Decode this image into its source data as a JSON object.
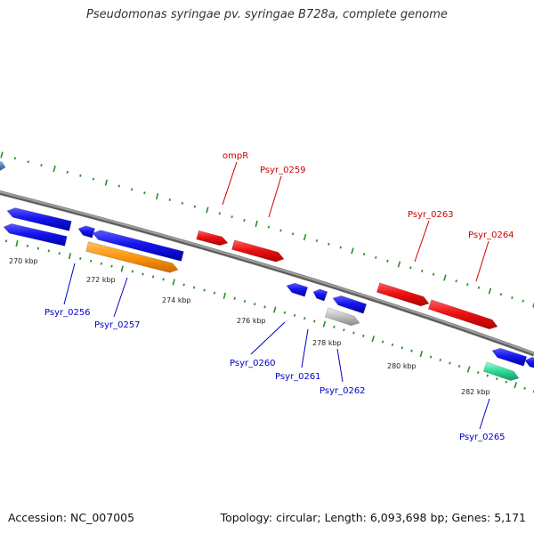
{
  "title": "Pseudomonas syringae pv. syringae B728a, complete genome",
  "footer": {
    "accession": "Accession: NC_007005",
    "summary": "Topology: circular; Length: 6,093,698 bp; Genes: 5,171"
  },
  "colors": {
    "backbone": "#808080",
    "ruler": "#2e8b2e",
    "forward_label": "#cc0000",
    "reverse_label": "#0000cc"
  },
  "ruler_labels": [
    "270 kbp",
    "272 kbp",
    "274 kbp",
    "276 kbp",
    "278 kbp",
    "280 kbp",
    "282 kbp"
  ],
  "gene_labels": [
    {
      "id": "ompR",
      "text": "ompR",
      "strand": "forward"
    },
    {
      "id": "p0259",
      "text": "Psyr_0259",
      "strand": "forward"
    },
    {
      "id": "p0263",
      "text": "Psyr_0263",
      "strand": "forward"
    },
    {
      "id": "p0264",
      "text": "Psyr_0264",
      "strand": "forward"
    },
    {
      "id": "p0256",
      "text": "Psyr_0256",
      "strand": "reverse"
    },
    {
      "id": "p0257",
      "text": "Psyr_0257",
      "strand": "reverse"
    },
    {
      "id": "p0260",
      "text": "Psyr_0260",
      "strand": "reverse"
    },
    {
      "id": "p0261",
      "text": "Psyr_0261",
      "strand": "reverse"
    },
    {
      "id": "p0262",
      "text": "Psyr_0262",
      "strand": "reverse"
    },
    {
      "id": "p0265",
      "text": "Psyr_0265",
      "strand": "reverse"
    }
  ]
}
